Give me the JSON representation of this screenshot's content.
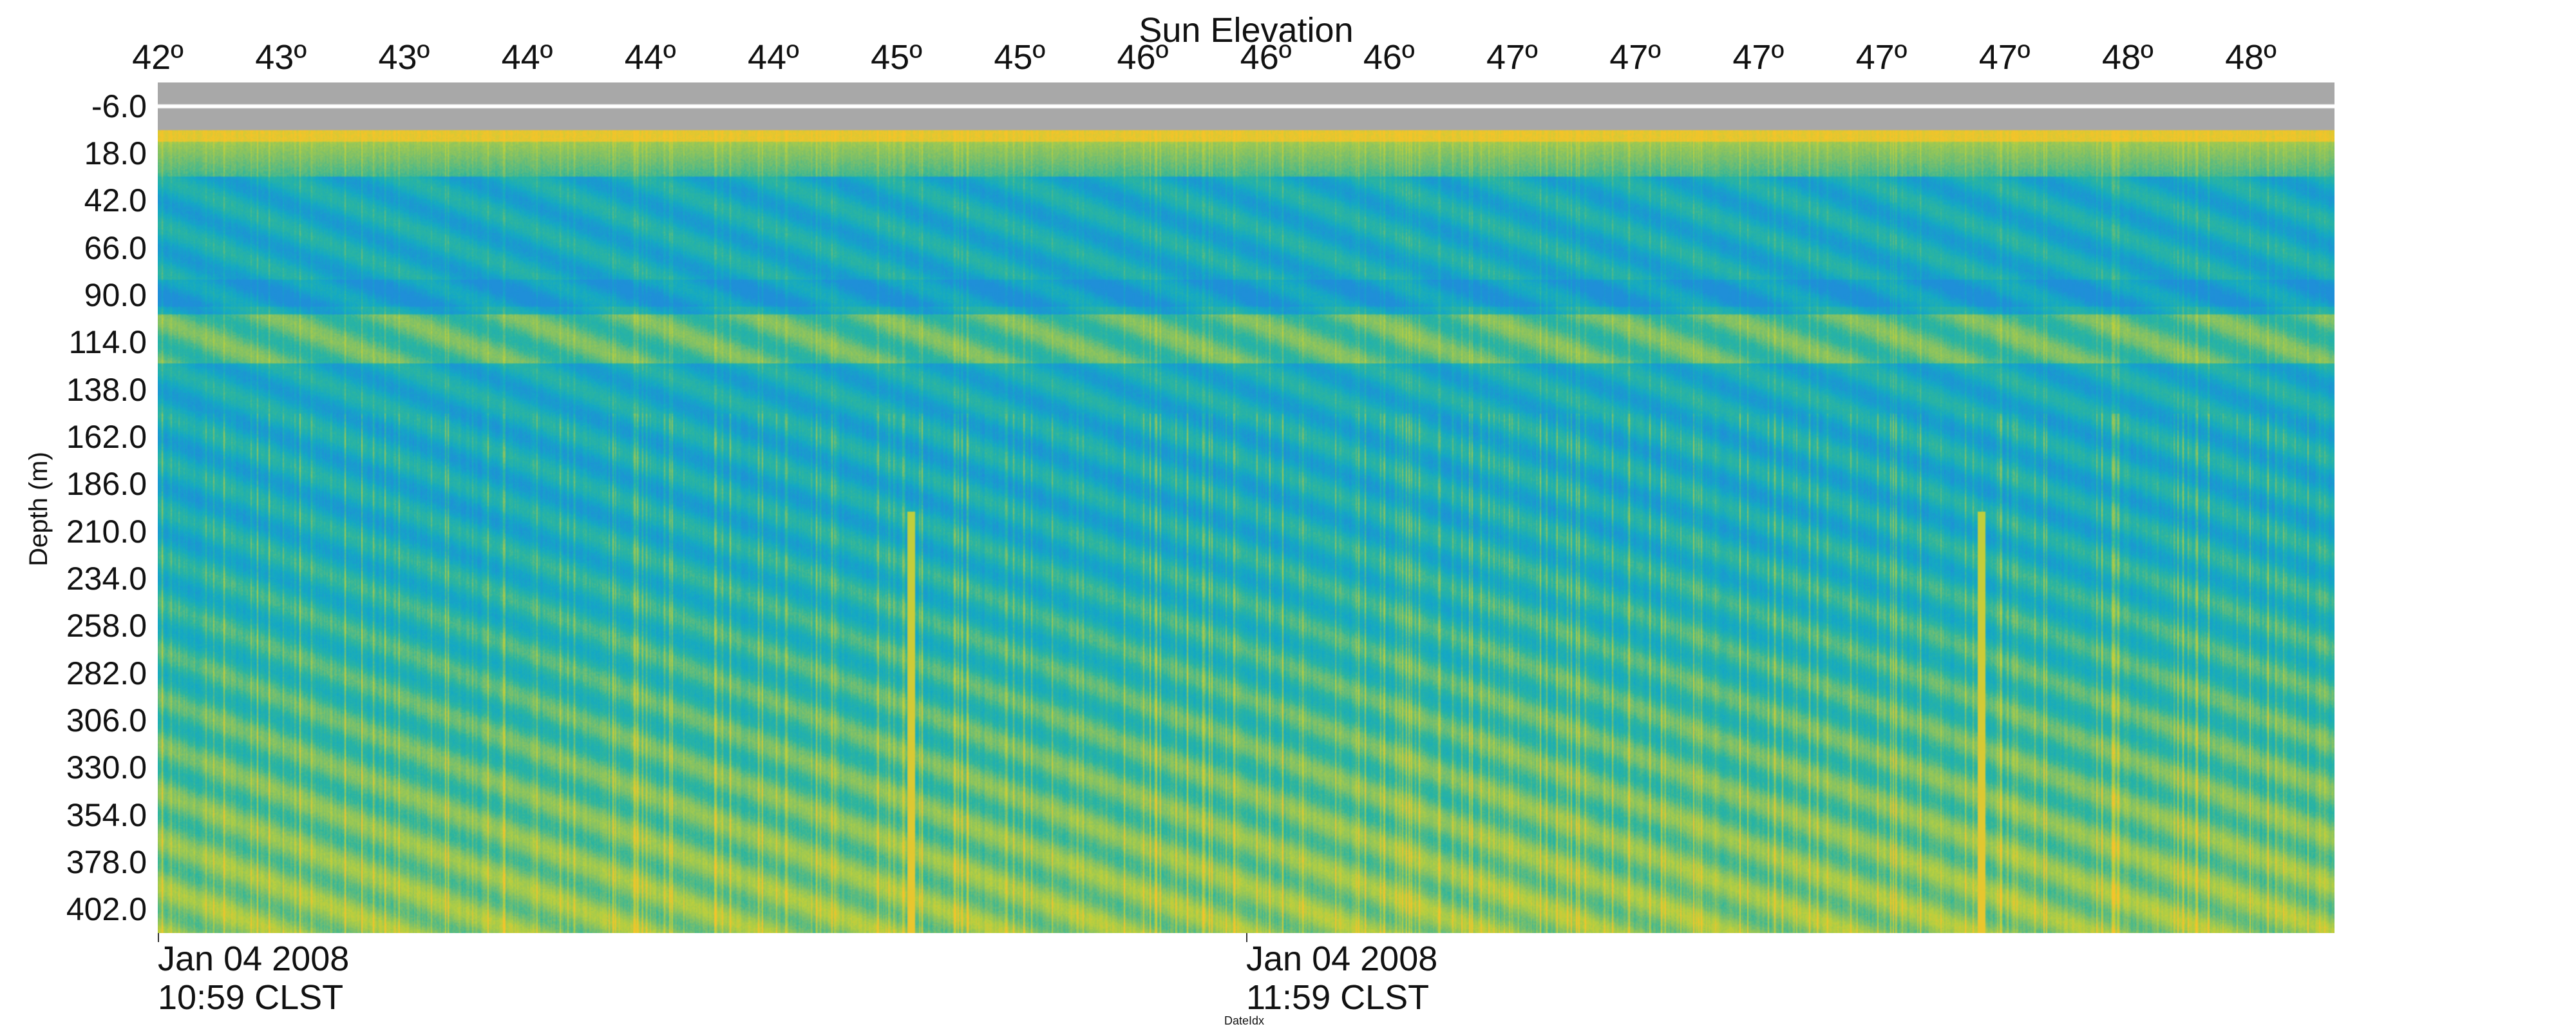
{
  "chart_data": {
    "type": "heatmap",
    "title": "",
    "top_axis_title": "Sun Elevation",
    "top_axis_ticks": [
      "42º",
      "43º",
      "43º",
      "44º",
      "44º",
      "44º",
      "45º",
      "45º",
      "46º",
      "46º",
      "46º",
      "47º",
      "47º",
      "47º",
      "47º",
      "47º",
      "48º",
      "48º"
    ],
    "ylabel": "Depth (m)",
    "xlabel": "DateIdx",
    "y_ticks": [
      "-6.0",
      "18.0",
      "42.0",
      "66.0",
      "90.0",
      "114.0",
      "138.0",
      "162.0",
      "186.0",
      "210.0",
      "234.0",
      "258.0",
      "282.0",
      "306.0",
      "330.0",
      "354.0",
      "378.0",
      "402.0"
    ],
    "ylim": [
      -18,
      414
    ],
    "y_direction": "down",
    "x_ticks": [
      {
        "date": "Jan 04 2008",
        "time": "10:59 CLST"
      },
      {
        "date": "Jan 04 2008",
        "time": "11:59 CLST"
      }
    ],
    "xlim_minutes": [
      0,
      120
    ],
    "x_tick_minutes": [
      0,
      60
    ],
    "no_data_depth_range_m": [
      -18,
      6
    ],
    "surface_band_depth_m": [
      6,
      12
    ],
    "subsurface_band_depth_m": [
      100,
      125
    ],
    "vertical_streaks_minutes": [
      41.5,
      100.5
    ],
    "colormap": [
      "#1f8fd8",
      "#14a9c4",
      "#2cb59f",
      "#7cc06a",
      "#b8cf3f",
      "#f4c42a"
    ],
    "no_data_color": "#a8a8a8",
    "grid": false,
    "legend": "none"
  }
}
